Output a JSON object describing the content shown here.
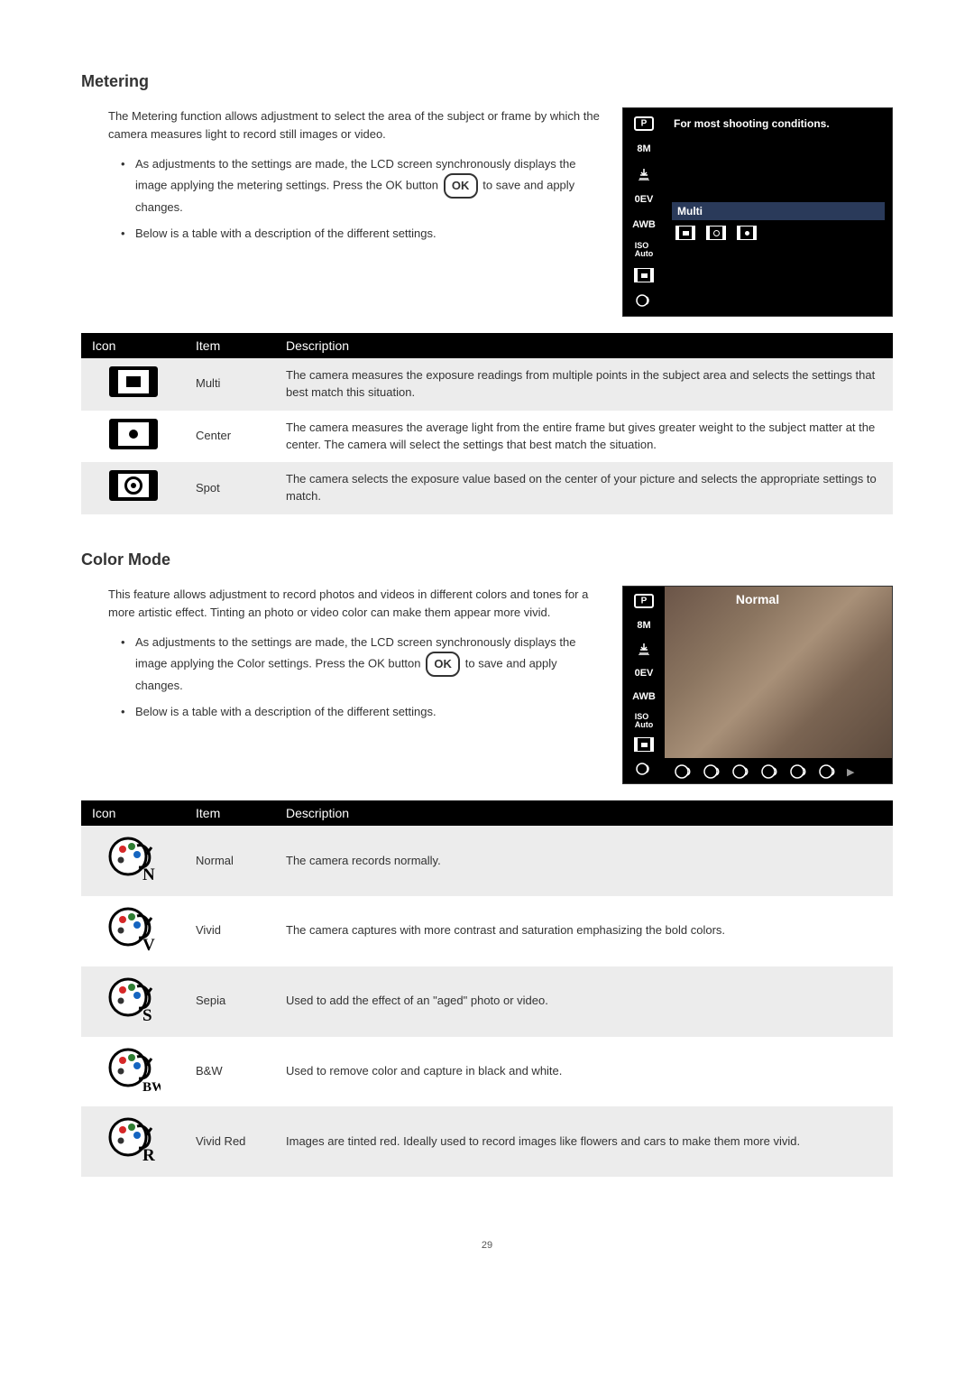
{
  "page_number": "29",
  "metering": {
    "heading": "Metering",
    "intro": "The Metering function allows adjustment to select the area of the subject or frame by which the camera measures light to record still images or video.",
    "bullets": {
      "b1_pre": "As adjustments to the settings are made, the LCD screen synchronously displays the image applying the metering settings. Press the OK button ",
      "b1_post": " to save and apply changes.",
      "b2": "Below is a table with a description of the different settings."
    },
    "ok_label": "OK",
    "lcd": {
      "tip": "For most shooting conditions.",
      "selected_label": "Multi",
      "side": {
        "p": "P",
        "res": "8M",
        "ev": "0EV",
        "awb": "AWB",
        "iso": "ISO\nAuto"
      }
    },
    "table": {
      "headers": {
        "icon": "Icon",
        "item": "Item",
        "desc": "Description"
      },
      "rows": [
        {
          "item": "Multi",
          "desc": "The camera measures the exposure readings from multiple points in the subject area and selects the settings that best match this situation."
        },
        {
          "item": "Center",
          "desc": "The camera measures the average light from the entire frame but gives greater weight to the subject matter at the center. The camera will select the settings that best match the situation."
        },
        {
          "item": "Spot",
          "desc": "The camera selects the exposure value based on the center of your picture and selects the appropriate settings to match."
        }
      ]
    }
  },
  "colormode": {
    "heading": "Color Mode",
    "intro": "This feature allows adjustment to record photos and videos in different colors and tones for a more artistic effect. Tinting an photo or video color can make them appear more vivid.",
    "bullets": {
      "b1_pre": "As adjustments to the settings are made, the LCD screen synchronously displays the image applying the Color settings. Press the OK button ",
      "b1_post": " to save and apply changes.",
      "b2": "Below is a table with a description of the different settings."
    },
    "ok_label": "OK",
    "lcd": {
      "title": "Normal",
      "side": {
        "p": "P",
        "res": "8M",
        "ev": "0EV",
        "awb": "AWB",
        "iso": "ISO\nAuto"
      }
    },
    "table": {
      "headers": {
        "icon": "Icon",
        "item": "Item",
        "desc": "Description"
      },
      "rows": [
        {
          "letter": "N",
          "item": "Normal",
          "desc": "The camera records normally."
        },
        {
          "letter": "V",
          "item": "Vivid",
          "desc": "The camera captures with more contrast and saturation emphasizing the bold colors."
        },
        {
          "letter": "S",
          "item": "Sepia",
          "desc": "Used to add the effect of an \"aged\" photo or video."
        },
        {
          "letter": "BW",
          "item": "B&W",
          "desc": "Used to remove color and capture in black and white."
        },
        {
          "letter": "R",
          "item": "Vivid Red",
          "desc": "Images are tinted red. Ideally used to record images like flowers and cars to make them more vivid."
        }
      ],
      "icon_colors": {
        "N": {
          "top": "#d62828",
          "mid": "#2e7d32",
          "bot": "#1565c0"
        },
        "V": {
          "top": "#d62828",
          "mid": "#2e7d32",
          "bot": "#1565c0"
        },
        "S": {
          "top": "#d62828",
          "mid": "#2e7d32",
          "bot": "#1565c0"
        },
        "BW": {
          "top": "#d62828",
          "mid": "#2e7d32",
          "bot": "#1565c0"
        },
        "R": {
          "top": "#d62828",
          "mid": "#2e7d32",
          "bot": "#1565c0"
        }
      }
    }
  }
}
